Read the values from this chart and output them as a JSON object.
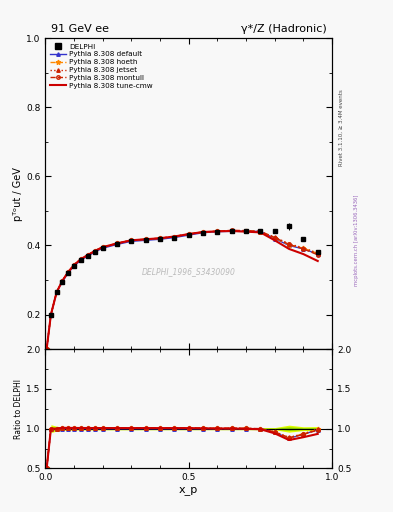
{
  "title_left": "91 GeV ee",
  "title_right": "γ*/Z (Hadronic)",
  "right_label": "Rivet 3.1.10, ≥ 3.4M events",
  "mcplots_label": "mcplots.cern.ch [arXiv:1306.3436]",
  "watermark": "DELPHI_1996_S3430090",
  "xlabel": "x_p",
  "ylabel": "pᵀᵒut / GeV",
  "ratio_ylabel": "Ratio to DELPHI",
  "ylim": [
    0.1,
    1.0
  ],
  "ratio_ylim": [
    0.5,
    2.0
  ],
  "data_x": [
    0.02,
    0.04,
    0.06,
    0.08,
    0.1,
    0.125,
    0.15,
    0.175,
    0.2,
    0.25,
    0.3,
    0.35,
    0.4,
    0.45,
    0.5,
    0.55,
    0.6,
    0.65,
    0.7,
    0.75,
    0.8,
    0.85,
    0.9,
    0.95
  ],
  "data_y": [
    0.2,
    0.265,
    0.295,
    0.32,
    0.34,
    0.358,
    0.37,
    0.382,
    0.392,
    0.403,
    0.412,
    0.415,
    0.418,
    0.423,
    0.43,
    0.437,
    0.44,
    0.441,
    0.441,
    0.441,
    0.441,
    0.455,
    0.42,
    0.38
  ],
  "data_yerr": [
    0.005,
    0.004,
    0.003,
    0.003,
    0.003,
    0.003,
    0.003,
    0.003,
    0.003,
    0.003,
    0.003,
    0.003,
    0.003,
    0.003,
    0.003,
    0.003,
    0.003,
    0.003,
    0.003,
    0.003,
    0.003,
    0.01,
    0.005,
    0.005
  ],
  "mc_x": [
    0.005,
    0.02,
    0.04,
    0.06,
    0.08,
    0.1,
    0.125,
    0.15,
    0.175,
    0.2,
    0.25,
    0.3,
    0.35,
    0.4,
    0.45,
    0.5,
    0.55,
    0.6,
    0.65,
    0.7,
    0.75,
    0.8,
    0.85,
    0.9,
    0.95
  ],
  "mc_default": [
    0.1,
    0.2,
    0.265,
    0.295,
    0.32,
    0.34,
    0.358,
    0.37,
    0.382,
    0.392,
    0.403,
    0.412,
    0.415,
    0.418,
    0.423,
    0.43,
    0.437,
    0.44,
    0.441,
    0.441,
    0.441,
    0.42,
    0.4,
    0.39,
    0.375
  ],
  "mc_hoeth": [
    0.1,
    0.2,
    0.265,
    0.298,
    0.323,
    0.343,
    0.361,
    0.373,
    0.385,
    0.395,
    0.406,
    0.415,
    0.418,
    0.421,
    0.426,
    0.433,
    0.439,
    0.441,
    0.442,
    0.442,
    0.44,
    0.422,
    0.402,
    0.392,
    0.377
  ],
  "mc_jetset": [
    0.1,
    0.2,
    0.265,
    0.298,
    0.323,
    0.343,
    0.361,
    0.373,
    0.385,
    0.395,
    0.406,
    0.415,
    0.418,
    0.421,
    0.426,
    0.433,
    0.439,
    0.441,
    0.442,
    0.442,
    0.44,
    0.424,
    0.405,
    0.393,
    0.378
  ],
  "mc_montull": [
    0.1,
    0.2,
    0.265,
    0.298,
    0.323,
    0.343,
    0.361,
    0.373,
    0.385,
    0.395,
    0.406,
    0.415,
    0.418,
    0.421,
    0.426,
    0.433,
    0.439,
    0.441,
    0.444,
    0.443,
    0.441,
    0.423,
    0.403,
    0.39,
    0.373
  ],
  "mc_tunecmw": [
    0.1,
    0.2,
    0.265,
    0.298,
    0.323,
    0.343,
    0.361,
    0.373,
    0.385,
    0.395,
    0.406,
    0.415,
    0.418,
    0.421,
    0.426,
    0.433,
    0.439,
    0.441,
    0.442,
    0.44,
    0.438,
    0.415,
    0.39,
    0.375,
    0.355
  ],
  "color_default": "#3333cc",
  "color_hoeth": "#ff8800",
  "color_jetset": "#cc2200",
  "color_montull": "#cc2200",
  "color_tunecmw": "#cc0000",
  "band_yellow": "#ddff00",
  "band_green": "#88cc00",
  "bg_color": "#f8f8f8"
}
